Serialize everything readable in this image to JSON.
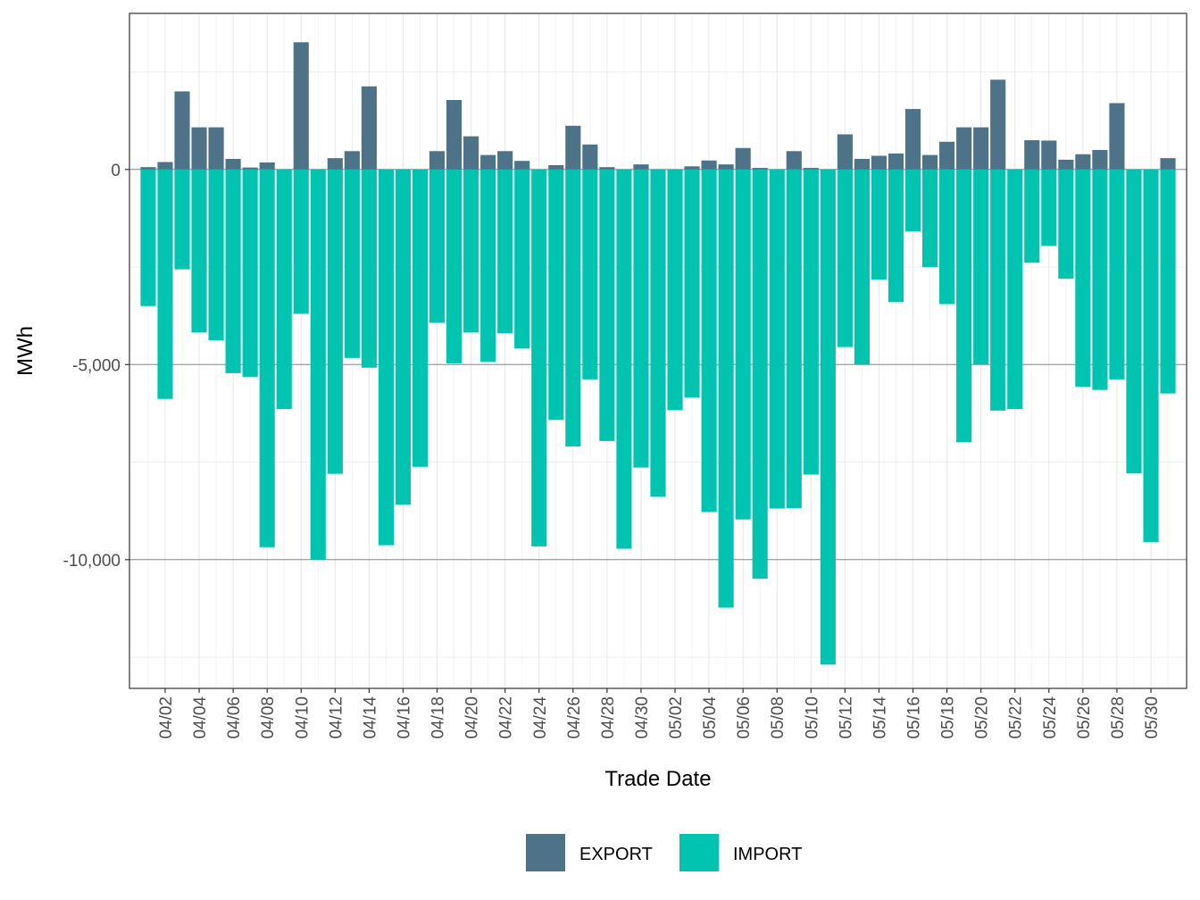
{
  "chart_data": {
    "type": "bar",
    "xlabel": "Trade Date",
    "ylabel": "MWh",
    "ylim": [
      -13300,
      4000
    ],
    "y_ticks": [
      {
        "value": 0,
        "label": "0"
      },
      {
        "value": -5000,
        "label": "-5,000"
      },
      {
        "value": -10000,
        "label": "-10,000"
      }
    ],
    "x_tick_labels": [
      "04/02",
      "04/04",
      "04/06",
      "04/08",
      "04/10",
      "04/12",
      "04/14",
      "04/16",
      "04/18",
      "04/20",
      "04/22",
      "04/24",
      "04/26",
      "04/28",
      "04/30",
      "05/02",
      "05/04",
      "05/06",
      "05/08",
      "05/10",
      "05/12",
      "05/14",
      "05/16",
      "05/18",
      "05/20",
      "05/22",
      "05/24",
      "05/26",
      "05/28",
      "05/30"
    ],
    "categories": [
      "04/01",
      "04/02",
      "04/03",
      "04/04",
      "04/05",
      "04/06",
      "04/07",
      "04/08",
      "04/09",
      "04/10",
      "04/11",
      "04/12",
      "04/13",
      "04/14",
      "04/15",
      "04/16",
      "04/17",
      "04/18",
      "04/19",
      "04/20",
      "04/21",
      "04/22",
      "04/23",
      "04/24",
      "04/25",
      "04/26",
      "04/27",
      "04/28",
      "04/29",
      "04/30",
      "05/01",
      "05/02",
      "05/03",
      "05/04",
      "05/05",
      "05/06",
      "05/07",
      "05/08",
      "05/09",
      "05/10",
      "05/11",
      "05/12",
      "05/13",
      "05/14",
      "05/15",
      "05/16",
      "05/17",
      "05/18",
      "05/19",
      "05/20",
      "05/21",
      "05/22",
      "05/23",
      "05/24",
      "05/25",
      "05/26",
      "05/27",
      "05/28",
      "05/29",
      "05/30",
      "05/31"
    ],
    "series": [
      {
        "name": "EXPORT",
        "color": "#4e7388",
        "values": [
          60,
          190,
          2000,
          1080,
          1080,
          270,
          50,
          180,
          0,
          3260,
          0,
          290,
          470,
          2130,
          0,
          0,
          0,
          470,
          1780,
          850,
          370,
          470,
          220,
          0,
          110,
          1120,
          640,
          60,
          0,
          130,
          0,
          0,
          80,
          230,
          130,
          550,
          40,
          0,
          470,
          40,
          0,
          900,
          270,
          350,
          410,
          1550,
          370,
          710,
          1080,
          1080,
          2300,
          0,
          750,
          740,
          250,
          390,
          500,
          1700,
          0,
          0,
          290
        ]
      },
      {
        "name": "IMPORT",
        "color": "#00c4b0",
        "values": [
          -3500,
          -5880,
          -2560,
          -4180,
          -4380,
          -5220,
          -5320,
          -9680,
          -6140,
          -3700,
          -10000,
          -7800,
          -4830,
          -5080,
          -9630,
          -8590,
          -7620,
          -3930,
          -4970,
          -4180,
          -4930,
          -4200,
          -4590,
          -9660,
          -6420,
          -7100,
          -5380,
          -6960,
          -9720,
          -7640,
          -8390,
          -6170,
          -5850,
          -8780,
          -11230,
          -8970,
          -10490,
          -8690,
          -8680,
          -7820,
          -12690,
          -4550,
          -5000,
          -2820,
          -3400,
          -1590,
          -2500,
          -3450,
          -6990,
          -5000,
          -6180,
          -6140,
          -2390,
          -1960,
          -2800,
          -5570,
          -5650,
          -5380,
          -7790,
          -9550,
          -5740
        ]
      }
    ],
    "legend": {
      "position": "bottom",
      "items": [
        {
          "label": "EXPORT",
          "color": "#4e7388"
        },
        {
          "label": "IMPORT",
          "color": "#00c4b0"
        }
      ]
    }
  }
}
